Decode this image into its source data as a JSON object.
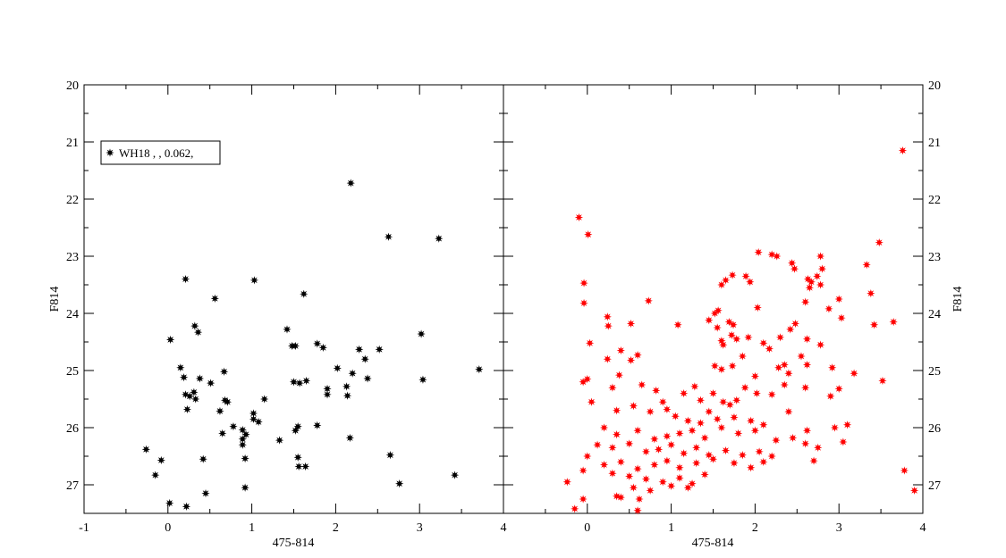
{
  "chart_data": [
    {
      "type": "scatter",
      "panel": "left",
      "xlabel": "475-814",
      "ylabel": "F814",
      "xlim": [
        -1,
        4
      ],
      "ylim": [
        27.5,
        20
      ],
      "x_ticks": [
        "-1",
        "0",
        "1",
        "2",
        "3",
        "4"
      ],
      "y_ticks": [
        "20",
        "21",
        "22",
        "23",
        "24",
        "25",
        "26",
        "27"
      ],
      "grid": false,
      "legend": {
        "placement": "top-left",
        "entries": [
          "WH18  ,   , 0.062,"
        ]
      },
      "series": [
        {
          "name": "WH18  ,   , 0.062,",
          "color": "#000000",
          "marker": "star",
          "points": [
            [
              2.18,
              21.72
            ],
            [
              0.21,
              23.4
            ],
            [
              1.03,
              23.42
            ],
            [
              0.56,
              23.74
            ],
            [
              1.62,
              23.66
            ],
            [
              2.63,
              22.66
            ],
            [
              3.23,
              22.69
            ],
            [
              0.32,
              24.22
            ],
            [
              0.36,
              24.33
            ],
            [
              0.03,
              24.46
            ],
            [
              1.42,
              24.28
            ],
            [
              1.48,
              24.57
            ],
            [
              1.52,
              24.57
            ],
            [
              1.78,
              24.53
            ],
            [
              1.85,
              24.6
            ],
            [
              2.28,
              24.63
            ],
            [
              2.35,
              24.8
            ],
            [
              2.52,
              24.63
            ],
            [
              3.02,
              24.36
            ],
            [
              0.15,
              24.95
            ],
            [
              0.19,
              25.12
            ],
            [
              0.38,
              25.14
            ],
            [
              0.51,
              25.22
            ],
            [
              0.67,
              25.02
            ],
            [
              0.31,
              25.38
            ],
            [
              0.21,
              25.42
            ],
            [
              0.26,
              25.45
            ],
            [
              0.33,
              25.5
            ],
            [
              0.68,
              25.52
            ],
            [
              0.71,
              25.55
            ],
            [
              1.15,
              25.5
            ],
            [
              1.5,
              25.2
            ],
            [
              1.57,
              25.22
            ],
            [
              1.65,
              25.18
            ],
            [
              1.9,
              25.32
            ],
            [
              1.9,
              25.42
            ],
            [
              2.02,
              24.96
            ],
            [
              2.13,
              25.28
            ],
            [
              2.14,
              25.44
            ],
            [
              2.2,
              25.05
            ],
            [
              2.38,
              25.14
            ],
            [
              3.04,
              25.16
            ],
            [
              3.71,
              24.98
            ],
            [
              0.23,
              25.68
            ],
            [
              0.62,
              25.71
            ],
            [
              1.02,
              25.75
            ],
            [
              1.02,
              25.85
            ],
            [
              1.08,
              25.9
            ],
            [
              0.78,
              25.98
            ],
            [
              0.89,
              26.04
            ],
            [
              0.65,
              26.1
            ],
            [
              0.89,
              26.2
            ],
            [
              0.93,
              26.12
            ],
            [
              0.89,
              26.3
            ],
            [
              1.52,
              26.05
            ],
            [
              1.55,
              25.98
            ],
            [
              1.78,
              25.96
            ],
            [
              1.33,
              26.22
            ],
            [
              1.55,
              26.52
            ],
            [
              1.56,
              26.68
            ],
            [
              1.64,
              26.68
            ],
            [
              2.17,
              26.18
            ],
            [
              2.65,
              26.48
            ],
            [
              -0.26,
              26.38
            ],
            [
              -0.08,
              26.57
            ],
            [
              0.42,
              26.55
            ],
            [
              0.92,
              26.54
            ],
            [
              -0.15,
              26.83
            ],
            [
              2.76,
              26.98
            ],
            [
              3.42,
              26.83
            ],
            [
              0.45,
              27.15
            ],
            [
              0.92,
              27.05
            ],
            [
              0.02,
              27.32
            ],
            [
              0.22,
              27.38
            ]
          ]
        }
      ]
    },
    {
      "type": "scatter",
      "panel": "right",
      "xlabel": "475-814",
      "ylabel": "F814",
      "xlim": [
        -1,
        4
      ],
      "ylim": [
        27.5,
        20
      ],
      "x_ticks": [
        "0",
        "1",
        "2",
        "3",
        "4"
      ],
      "y_ticks": [
        "20",
        "21",
        "22",
        "23",
        "24",
        "25",
        "26",
        "27"
      ],
      "grid": false,
      "series": [
        {
          "color": "#ff0000",
          "marker": "star",
          "points": [
            [
              3.76,
              21.15
            ],
            [
              -0.1,
              22.32
            ],
            [
              0.01,
              22.62
            ],
            [
              2.04,
              22.93
            ],
            [
              2.2,
              22.97
            ],
            [
              2.26,
              23.0
            ],
            [
              2.78,
              23.0
            ],
            [
              2.44,
              23.12
            ],
            [
              2.47,
              23.22
            ],
            [
              3.48,
              22.76
            ],
            [
              3.33,
              23.15
            ],
            [
              2.8,
              23.22
            ],
            [
              1.73,
              23.33
            ],
            [
              1.89,
              23.35
            ],
            [
              1.94,
              23.45
            ],
            [
              2.63,
              23.4
            ],
            [
              2.67,
              23.45
            ],
            [
              2.74,
              23.35
            ],
            [
              1.6,
              23.5
            ],
            [
              1.65,
              23.42
            ],
            [
              2.65,
              23.55
            ],
            [
              2.78,
              23.5
            ],
            [
              3.38,
              23.65
            ],
            [
              -0.04,
              23.47
            ],
            [
              0.73,
              23.78
            ],
            [
              1.52,
              24.0
            ],
            [
              1.56,
              23.95
            ],
            [
              1.69,
              24.15
            ],
            [
              1.74,
              24.2
            ],
            [
              2.03,
              23.9
            ],
            [
              2.48,
              24.18
            ],
            [
              2.88,
              23.92
            ],
            [
              3.0,
              23.75
            ],
            [
              2.6,
              23.8
            ],
            [
              3.03,
              24.08
            ],
            [
              3.42,
              24.2
            ],
            [
              3.65,
              24.15
            ],
            [
              -0.04,
              23.82
            ],
            [
              0.24,
              24.06
            ],
            [
              0.25,
              24.22
            ],
            [
              0.52,
              24.18
            ],
            [
              1.08,
              24.2
            ],
            [
              1.45,
              24.12
            ],
            [
              1.55,
              24.25
            ],
            [
              1.72,
              24.38
            ],
            [
              1.78,
              24.45
            ],
            [
              1.6,
              24.48
            ],
            [
              1.62,
              24.55
            ],
            [
              1.92,
              24.42
            ],
            [
              2.1,
              24.52
            ],
            [
              2.17,
              24.62
            ],
            [
              2.3,
              24.42
            ],
            [
              2.42,
              24.28
            ],
            [
              2.62,
              24.45
            ],
            [
              2.78,
              24.55
            ],
            [
              2.55,
              24.75
            ],
            [
              0.4,
              24.65
            ],
            [
              0.6,
              24.73
            ],
            [
              0.03,
              24.52
            ],
            [
              0.24,
              24.8
            ],
            [
              0.52,
              24.82
            ],
            [
              1.52,
              24.92
            ],
            [
              1.6,
              24.98
            ],
            [
              1.73,
              24.92
            ],
            [
              1.85,
              24.75
            ],
            [
              2.0,
              25.1
            ],
            [
              2.35,
              24.9
            ],
            [
              2.4,
              25.05
            ],
            [
              2.28,
              24.95
            ],
            [
              2.62,
              24.9
            ],
            [
              2.92,
              24.95
            ],
            [
              3.18,
              25.05
            ],
            [
              3.52,
              25.18
            ],
            [
              -0.05,
              25.2
            ],
            [
              0.0,
              25.15
            ],
            [
              0.3,
              25.3
            ],
            [
              0.38,
              25.08
            ],
            [
              0.65,
              25.25
            ],
            [
              0.82,
              25.35
            ],
            [
              0.9,
              25.55
            ],
            [
              1.15,
              25.4
            ],
            [
              1.28,
              25.28
            ],
            [
              1.35,
              25.52
            ],
            [
              1.5,
              25.4
            ],
            [
              1.62,
              25.55
            ],
            [
              1.7,
              25.6
            ],
            [
              1.78,
              25.52
            ],
            [
              1.88,
              25.3
            ],
            [
              2.02,
              25.4
            ],
            [
              2.2,
              25.42
            ],
            [
              2.35,
              25.25
            ],
            [
              2.6,
              25.3
            ],
            [
              2.9,
              25.45
            ],
            [
              3.0,
              25.32
            ],
            [
              0.05,
              25.55
            ],
            [
              0.35,
              25.7
            ],
            [
              0.55,
              25.62
            ],
            [
              0.75,
              25.72
            ],
            [
              0.95,
              25.68
            ],
            [
              1.05,
              25.8
            ],
            [
              1.2,
              25.88
            ],
            [
              1.35,
              25.92
            ],
            [
              1.45,
              25.72
            ],
            [
              1.55,
              25.85
            ],
            [
              1.75,
              25.82
            ],
            [
              1.95,
              25.88
            ],
            [
              2.1,
              25.95
            ],
            [
              2.4,
              25.72
            ],
            [
              0.2,
              26.0
            ],
            [
              0.35,
              26.12
            ],
            [
              0.6,
              26.05
            ],
            [
              0.8,
              26.2
            ],
            [
              0.95,
              26.15
            ],
            [
              1.1,
              26.1
            ],
            [
              1.25,
              26.05
            ],
            [
              1.4,
              26.18
            ],
            [
              1.6,
              26.0
            ],
            [
              1.8,
              26.1
            ],
            [
              2.0,
              26.05
            ],
            [
              2.25,
              26.22
            ],
            [
              2.45,
              26.18
            ],
            [
              2.62,
              26.05
            ],
            [
              2.95,
              26.0
            ],
            [
              3.1,
              25.95
            ],
            [
              0.12,
              26.3
            ],
            [
              0.3,
              26.35
            ],
            [
              0.5,
              26.28
            ],
            [
              0.7,
              26.42
            ],
            [
              0.85,
              26.38
            ],
            [
              1.0,
              26.3
            ],
            [
              1.15,
              26.45
            ],
            [
              1.3,
              26.35
            ],
            [
              1.45,
              26.48
            ],
            [
              1.65,
              26.4
            ],
            [
              1.85,
              26.48
            ],
            [
              2.05,
              26.42
            ],
            [
              2.2,
              26.5
            ],
            [
              2.6,
              26.28
            ],
            [
              2.75,
              26.35
            ],
            [
              3.05,
              26.25
            ],
            [
              0.0,
              26.5
            ],
            [
              0.2,
              26.65
            ],
            [
              0.4,
              26.6
            ],
            [
              0.6,
              26.72
            ],
            [
              0.8,
              26.65
            ],
            [
              0.95,
              26.58
            ],
            [
              1.1,
              26.7
            ],
            [
              1.3,
              26.62
            ],
            [
              1.5,
              26.55
            ],
            [
              1.75,
              26.62
            ],
            [
              1.95,
              26.7
            ],
            [
              2.1,
              26.6
            ],
            [
              2.7,
              26.58
            ],
            [
              3.78,
              26.75
            ],
            [
              -0.05,
              26.75
            ],
            [
              0.3,
              26.8
            ],
            [
              0.5,
              26.85
            ],
            [
              0.7,
              26.9
            ],
            [
              0.9,
              26.95
            ],
            [
              1.1,
              26.88
            ],
            [
              1.25,
              26.98
            ],
            [
              1.4,
              26.82
            ],
            [
              0.55,
              27.05
            ],
            [
              0.75,
              27.1
            ],
            [
              1.0,
              27.02
            ],
            [
              1.2,
              27.05
            ],
            [
              -0.24,
              26.95
            ],
            [
              0.35,
              27.2
            ],
            [
              0.62,
              27.25
            ],
            [
              -0.05,
              27.25
            ],
            [
              0.4,
              27.22
            ],
            [
              3.9,
              27.1
            ],
            [
              -0.15,
              27.42
            ],
            [
              0.6,
              27.45
            ]
          ]
        }
      ]
    }
  ]
}
